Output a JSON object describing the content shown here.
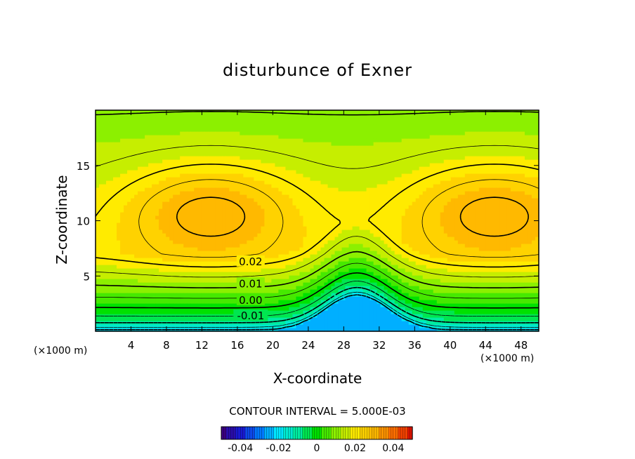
{
  "chart_data": {
    "type": "contour",
    "title": "disturbunce of Exner",
    "xlabel": "X-coordinate",
    "ylabel": "Z-coordinate",
    "x_unit": "(×1000 m)",
    "y_unit": "(×1000 m)",
    "xlim": [
      0,
      50
    ],
    "ylim": [
      0,
      20
    ],
    "x_ticks": [
      4,
      8,
      12,
      16,
      20,
      24,
      28,
      32,
      36,
      40,
      44,
      48
    ],
    "y_ticks": [
      5,
      10,
      15
    ],
    "contour_interval_label": "CONTOUR INTERVAL = 5.000E-03",
    "contour_labels": [
      {
        "text": "0.02",
        "x": 17.5,
        "z": 6.3
      },
      {
        "text": "0.01",
        "x": 17.5,
        "z": 4.3
      },
      {
        "text": "0.00",
        "x": 17.5,
        "z": 2.8
      },
      {
        "text": "-0.01",
        "x": 17.5,
        "z": 1.4
      }
    ],
    "colorbar": {
      "range": [
        -0.05,
        0.05
      ],
      "tick_labels": [
        "-0.04",
        "-0.02",
        "0",
        "0.02",
        "0.04"
      ],
      "tick_values": [
        -0.04,
        -0.02,
        0,
        0.02,
        0.04
      ]
    },
    "field_features": {
      "max_value_approx": 0.04,
      "min_value_approx": -0.025,
      "maxima_locations": [
        {
          "x": 13,
          "z": 11
        },
        {
          "x": 45,
          "z": 11
        }
      ],
      "ridge_center_x": 29.5
    }
  }
}
